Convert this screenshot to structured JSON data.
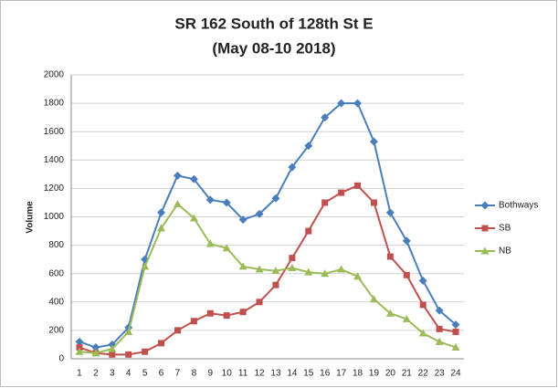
{
  "chart_data": {
    "type": "line",
    "title": "SR 162 South of 128th St E",
    "subtitle": "(May 08-10 2018)",
    "y_label": "Volume",
    "categories": [
      "1",
      "2",
      "3",
      "4",
      "5",
      "6",
      "7",
      "8",
      "9",
      "10",
      "11",
      "12",
      "13",
      "14",
      "15",
      "16",
      "17",
      "18",
      "19",
      "20",
      "21",
      "22",
      "23",
      "24"
    ],
    "series": [
      {
        "name": "Bothways",
        "color": "#4a7ebb",
        "marker": "diamond",
        "values": [
          120,
          80,
          100,
          220,
          700,
          1030,
          1290,
          1265,
          1120,
          1100,
          980,
          1020,
          1130,
          1350,
          1500,
          1700,
          1800,
          1800,
          1530,
          1030,
          830,
          550,
          340,
          240
        ]
      },
      {
        "name": "SB",
        "color": "#c0504d",
        "marker": "square",
        "values": [
          80,
          40,
          30,
          30,
          50,
          110,
          200,
          265,
          320,
          305,
          330,
          400,
          520,
          710,
          900,
          1100,
          1170,
          1220,
          1100,
          720,
          590,
          380,
          210,
          190
        ]
      },
      {
        "name": "NB",
        "color": "#9bbb59",
        "marker": "triangle",
        "values": [
          50,
          40,
          70,
          190,
          650,
          920,
          1090,
          990,
          810,
          780,
          650,
          630,
          620,
          640,
          610,
          600,
          630,
          580,
          420,
          320,
          280,
          180,
          120,
          80
        ]
      }
    ],
    "ylim": [
      0,
      2000
    ],
    "yticks": [
      0,
      200,
      400,
      600,
      800,
      1000,
      1200,
      1400,
      1600,
      1800,
      2000
    ],
    "grid": true,
    "legend": "right"
  }
}
